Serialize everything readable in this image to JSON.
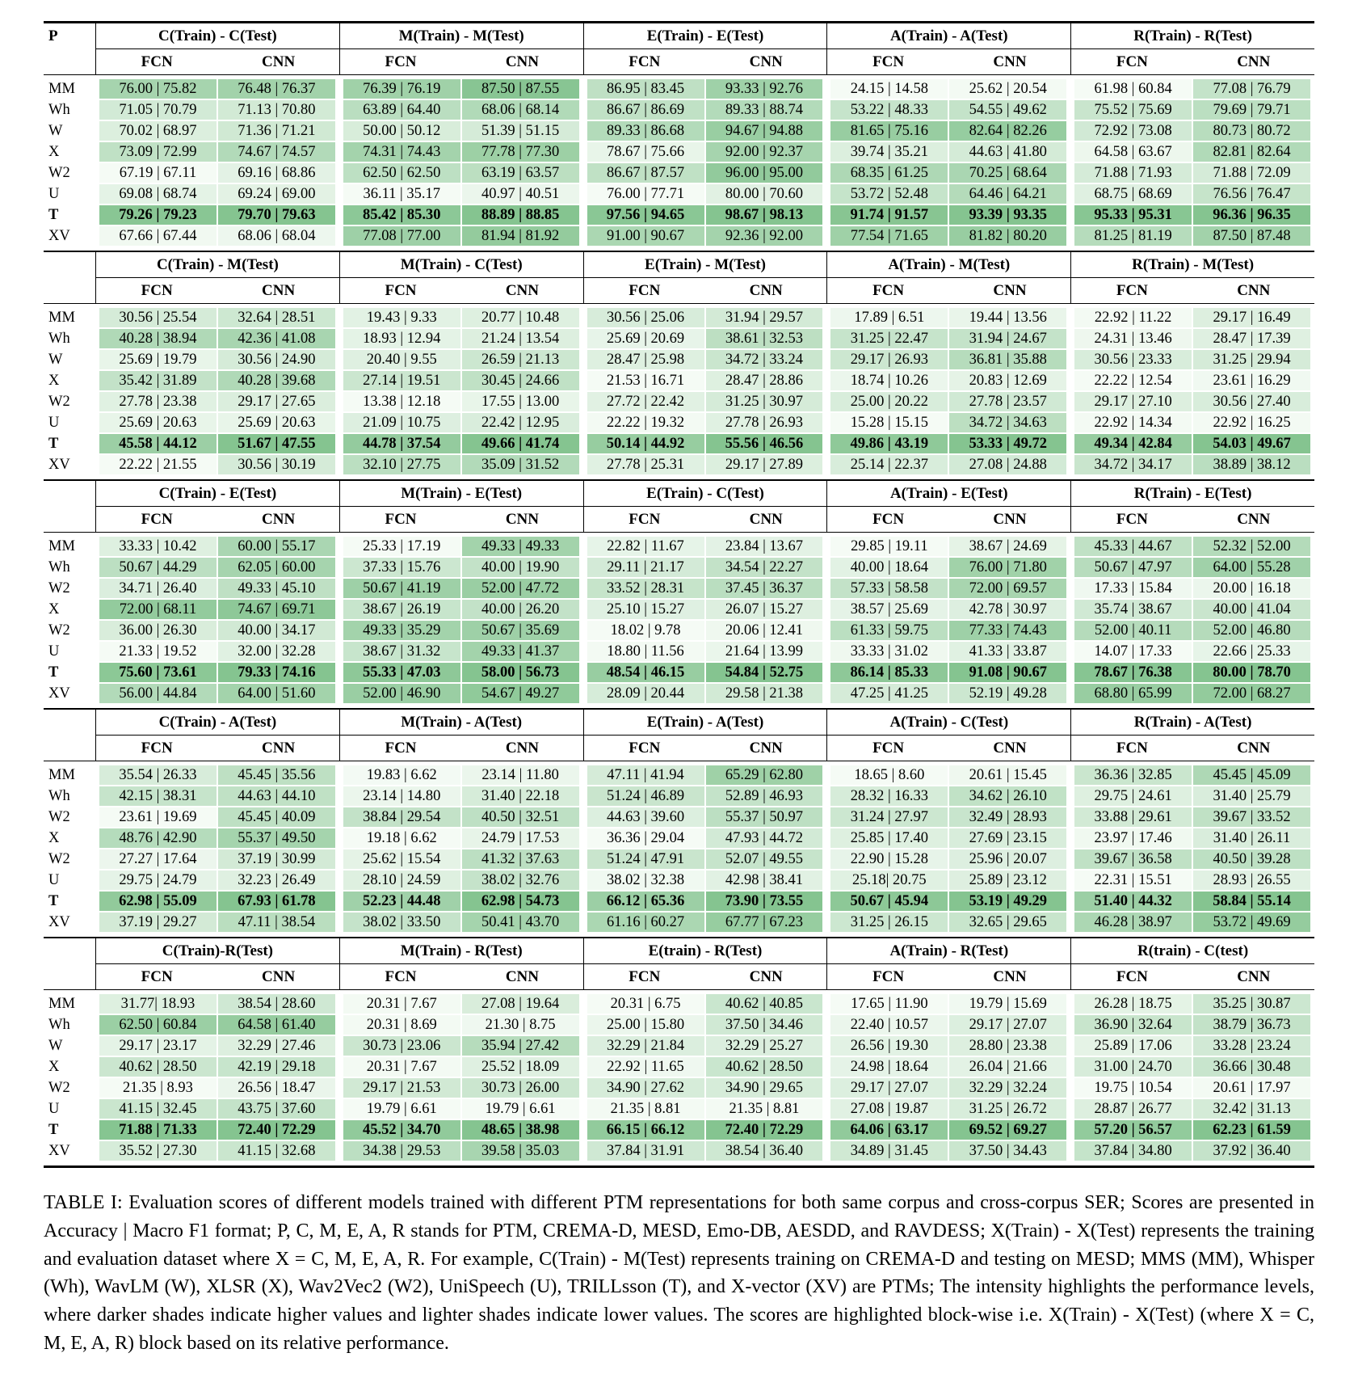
{
  "page": {
    "caption_label": "TABLE I:",
    "caption_text": "Evaluation scores of different models trained with different PTM representations for both same corpus and cross-corpus SER; Scores are presented in Accuracy | Macro F1 format; P, C, M, E, A, R stands for PTM, CREMA-D, MESD, Emo-DB, AESDD, and RAVDESS; X(Train) - X(Test) represents the training and evaluation dataset where X = C, M, E, A, R. For example, C(Train) - M(Test) represents training on CREMA-D and testing on MESD; MMS (MM), Whisper (Wh), WavLM (W), XLSR (X), Wav2Vec2 (W2), UniSpeech (U), TRILLsson (T), and X-vector (XV) are PTMs; The intensity highlights the performance levels, where darker shades indicate higher values and lighter shades indicate lower values. The scores are highlighted block-wise i.e. X(Train) - X(Test) (where X = C, M, E, A, R) block based on its relative performance."
  },
  "table": {
    "p_header": "P",
    "subheaders": [
      "FCN",
      "CNN"
    ],
    "colors": {
      "shade_light": "#f5fbf5",
      "shade_dark": "#85c490"
    },
    "sections": [
      {
        "groups": [
          "C(Train) - C(Test)",
          "M(Train) - M(Test)",
          "E(Train) - E(Test)",
          "A(Train) - A(Test)",
          "R(Train) - R(Test)"
        ],
        "rows": [
          {
            "label": "MM",
            "bold": false,
            "cells": [
              "76.00 | 75.82",
              "76.48 | 76.37",
              "76.39 | 76.19",
              "87.50 | 87.55",
              "86.95 | 83.45",
              "93.33 | 92.76",
              "24.15 | 14.58",
              "25.62 | 20.54",
              "61.98 | 60.84",
              "77.08 | 76.79"
            ]
          },
          {
            "label": "Wh",
            "bold": false,
            "cells": [
              "71.05 | 70.79",
              "71.13 | 70.80",
              "63.89 | 64.40",
              "68.06 | 68.14",
              "86.67 | 86.69",
              "89.33 | 88.74",
              "53.22 | 48.33",
              "54.55 | 49.62",
              "75.52 | 75.69",
              "79.69 | 79.71"
            ]
          },
          {
            "label": "W",
            "bold": false,
            "cells": [
              "70.02 | 68.97",
              "71.36 | 71.21",
              "50.00 | 50.12",
              "51.39 | 51.15",
              "89.33 | 86.68",
              "94.67 | 94.88",
              "81.65 | 75.16",
              "82.64 | 82.26",
              "72.92 | 73.08",
              "80.73 | 80.72"
            ]
          },
          {
            "label": "X",
            "bold": false,
            "cells": [
              "73.09 | 72.99",
              "74.67 | 74.57",
              "74.31 | 74.43",
              "77.78 | 77.30",
              "78.67 | 75.66",
              "92.00 | 92.37",
              "39.74 | 35.21",
              "44.63 | 41.80",
              "64.58 | 63.67",
              "82.81 | 82.64"
            ]
          },
          {
            "label": "W2",
            "bold": false,
            "cells": [
              "67.19 | 67.11",
              "69.16 | 68.86",
              "62.50 | 62.50",
              "63.19 | 63.57",
              "86.67 | 87.57",
              "96.00 | 95.00",
              "68.35 | 61.25",
              "70.25 | 68.64",
              "71.88 | 71.93",
              "71.88 | 72.09"
            ]
          },
          {
            "label": "U",
            "bold": false,
            "cells": [
              "69.08 | 68.74",
              "69.24 | 69.00",
              "36.11 | 35.17",
              "40.97 | 40.51",
              "76.00 | 77.71",
              "80.00 | 70.60",
              "53.72 | 52.48",
              "64.46 | 64.21",
              "68.75 | 68.69",
              "76.56 | 76.47"
            ]
          },
          {
            "label": "T",
            "bold": true,
            "cells": [
              "79.26 | 79.23",
              "79.70 | 79.63",
              "85.42 | 85.30",
              "88.89 | 88.85",
              "97.56 | 94.65",
              "98.67 | 98.13",
              "91.74 | 91.57",
              "93.39 | 93.35",
              "95.33 | 95.31",
              "96.36 | 96.35"
            ]
          },
          {
            "label": "XV",
            "bold": false,
            "cells": [
              "67.66 | 67.44",
              "68.06 | 68.04",
              "77.08 | 77.00",
              "81.94 | 81.92",
              "91.00 | 90.67",
              "92.36 | 92.00",
              "77.54 | 71.65",
              "81.82 | 80.20",
              "81.25 | 81.19",
              "87.50 | 87.48"
            ]
          }
        ]
      },
      {
        "groups": [
          "C(Train) - M(Test)",
          "M(Train) - C(Test)",
          "E(Train) - M(Test)",
          "A(Train) - M(Test)",
          "R(Train) - M(Test)"
        ],
        "rows": [
          {
            "label": "MM",
            "bold": false,
            "cells": [
              "30.56 | 25.54",
              "32.64 | 28.51",
              "19.43 | 9.33",
              "20.77 | 10.48",
              "30.56 | 25.06",
              "31.94 | 29.57",
              "17.89 | 6.51",
              "19.44 | 13.56",
              "22.92 | 11.22",
              "29.17 | 16.49"
            ]
          },
          {
            "label": "Wh",
            "bold": false,
            "cells": [
              "40.28 | 38.94",
              "42.36 | 41.08",
              "18.93 | 12.94",
              "21.24 | 13.54",
              "25.69 | 20.69",
              "38.61 | 32.53",
              "31.25 | 22.47",
              "31.94 | 24.67",
              "24.31 | 13.46",
              "28.47 | 17.39"
            ]
          },
          {
            "label": "W",
            "bold": false,
            "cells": [
              "25.69 | 19.79",
              "30.56 | 24.90",
              "20.40 | 9.55",
              "26.59 | 21.13",
              "28.47 | 25.98",
              "34.72 | 33.24",
              "29.17 | 26.93",
              "36.81 | 35.88",
              "30.56 | 23.33",
              "31.25 | 29.94"
            ]
          },
          {
            "label": "X",
            "bold": false,
            "cells": [
              "35.42 | 31.89",
              "40.28 | 39.68",
              "27.14 | 19.51",
              "30.45 | 24.66",
              "21.53 | 16.71",
              "28.47 | 28.86",
              "18.74 | 10.26",
              "20.83 | 12.69",
              "22.22 | 12.54",
              "23.61 | 16.29"
            ]
          },
          {
            "label": "W2",
            "bold": false,
            "cells": [
              "27.78 | 23.38",
              "29.17 | 27.65",
              "13.38 | 12.18",
              "17.55 | 13.00",
              "27.72 | 22.42",
              "31.25 | 30.97",
              "25.00 | 20.22",
              "27.78 | 23.57",
              "29.17 | 27.10",
              "30.56 | 27.40"
            ]
          },
          {
            "label": "U",
            "bold": false,
            "cells": [
              "25.69 | 20.63",
              "25.69 | 20.63",
              "21.09 | 10.75",
              "22.42 | 12.95",
              "22.22 | 19.32",
              "27.78 | 26.93",
              "15.28 | 15.15",
              "34.72 | 34.63",
              "22.92 | 14.34",
              "22.92 | 16.25"
            ]
          },
          {
            "label": "T",
            "bold": true,
            "cells": [
              "45.58 | 44.12",
              "51.67 | 47.55",
              "44.78 | 37.54",
              "49.66 | 41.74",
              "50.14 | 44.92",
              "55.56 | 46.56",
              "49.86 | 43.19",
              "53.33 | 49.72",
              "49.34 | 42.84",
              "54.03 | 49.67"
            ]
          },
          {
            "label": "XV",
            "bold": false,
            "cells": [
              "22.22 | 21.55",
              "30.56 | 30.19",
              "32.10 | 27.75",
              "35.09 | 31.52",
              "27.78 | 25.31",
              "29.17 | 27.89",
              "25.14 | 22.37",
              "27.08 | 24.88",
              "34.72 | 34.17",
              "38.89 | 38.12"
            ]
          }
        ]
      },
      {
        "groups": [
          "C(Train) - E(Test)",
          "M(Train) - E(Test)",
          "E(Train) - C(Test)",
          "A(Train) - E(Test)",
          "R(Train) - E(Test)"
        ],
        "rows": [
          {
            "label": "MM",
            "bold": false,
            "cells": [
              "33.33 | 10.42",
              "60.00 | 55.17",
              "25.33 | 17.19",
              "49.33 | 49.33",
              "22.82 | 11.67",
              "23.84 | 13.67",
              "29.85 | 19.11",
              "38.67 | 24.69",
              "45.33 | 44.67",
              "52.32 | 52.00"
            ]
          },
          {
            "label": "Wh",
            "bold": false,
            "cells": [
              "50.67 | 44.29",
              "62.05 | 60.00",
              "37.33 | 15.76",
              "40.00 | 19.90",
              "29.11 | 21.17",
              "34.54 | 22.27",
              "40.00 | 18.64",
              "76.00 | 71.80",
              "50.67 | 47.97",
              "64.00 | 55.28"
            ]
          },
          {
            "label": "W2",
            "bold": false,
            "cells": [
              "34.71 | 26.40",
              "49.33 | 45.10",
              "50.67 | 41.19",
              "52.00 | 47.72",
              "33.52 | 28.31",
              "37.45 | 36.37",
              "57.33 | 58.58",
              "72.00 | 69.57",
              "17.33 | 15.84",
              "20.00 | 16.18"
            ]
          },
          {
            "label": "X",
            "bold": false,
            "cells": [
              "72.00 | 68.11",
              "74.67 | 69.71",
              "38.67 | 26.19",
              "40.00 | 26.20",
              "25.10 | 15.27",
              "26.07 | 15.27",
              "38.57 | 25.69",
              "42.78 | 30.97",
              "35.74 | 38.67",
              "40.00 | 41.04"
            ]
          },
          {
            "label": "W2",
            "bold": false,
            "cells": [
              "36.00 | 26.30",
              "40.00 | 34.17",
              "49.33 | 35.29",
              "50.67 | 35.69",
              "18.02 | 9.78",
              "20.06 | 12.41",
              "61.33 | 59.75",
              "77.33 | 74.43",
              "52.00 | 40.11",
              "52.00 | 46.80"
            ]
          },
          {
            "label": "U",
            "bold": false,
            "cells": [
              "21.33 | 19.52",
              "32.00 | 32.28",
              "38.67 | 31.32",
              "49.33 | 41.37",
              "18.80 | 11.56",
              "21.64 | 13.99",
              "33.33 | 31.02",
              "41.33 | 33.87",
              "14.07 | 17.33",
              "22.66 | 25.33"
            ]
          },
          {
            "label": "T",
            "bold": true,
            "cells": [
              "75.60 | 73.61",
              "79.33 | 74.16",
              "55.33 | 47.03",
              "58.00 | 56.73",
              "48.54 | 46.15",
              "54.84 | 52.75",
              "86.14 | 85.33",
              "91.08 | 90.67",
              "78.67 | 76.38",
              "80.00 | 78.70"
            ]
          },
          {
            "label": "XV",
            "bold": false,
            "cells": [
              "56.00 | 44.84",
              "64.00 | 51.60",
              "52.00 | 46.90",
              "54.67 | 49.27",
              "28.09 | 20.44",
              "29.58 | 21.38",
              "47.25 | 41.25",
              "52.19 | 49.28",
              "68.80 | 65.99",
              "72.00 | 68.27"
            ]
          }
        ]
      },
      {
        "groups": [
          "C(Train) - A(Test)",
          "M(Train) - A(Test)",
          "E(Train) - A(Test)",
          "A(Train) - C(Test)",
          "R(Train) - A(Test)"
        ],
        "rows": [
          {
            "label": "MM",
            "bold": false,
            "cells": [
              "35.54 | 26.33",
              "45.45 | 35.56",
              "19.83 | 6.62",
              "23.14 | 11.80",
              "47.11 | 41.94",
              "65.29 | 62.80",
              "18.65 | 8.60",
              "20.61 | 15.45",
              "36.36 | 32.85",
              "45.45 | 45.09"
            ]
          },
          {
            "label": "Wh",
            "bold": false,
            "cells": [
              "42.15 | 38.31",
              "44.63 | 44.10",
              "23.14 | 14.80",
              "31.40 | 22.18",
              "51.24 | 46.89",
              "52.89 | 46.93",
              "28.32 | 16.33",
              "34.62 | 26.10",
              "29.75 | 24.61",
              "31.40 | 25.79"
            ]
          },
          {
            "label": "W2",
            "bold": false,
            "cells": [
              "23.61 | 19.69",
              "45.45 | 40.09",
              "38.84 | 29.54",
              "40.50 | 32.51",
              "44.63 | 39.60",
              "55.37 | 50.97",
              "31.24 | 27.97",
              "32.49 | 28.93",
              "33.88 | 29.61",
              "39.67 | 33.52"
            ]
          },
          {
            "label": "X",
            "bold": false,
            "cells": [
              "48.76 | 42.90",
              "55.37 | 49.50",
              "19.18 | 6.62",
              "24.79 | 17.53",
              "36.36 | 29.04",
              "47.93 | 44.72",
              "25.85 | 17.40",
              "27.69 | 23.15",
              "23.97 | 17.46",
              "31.40 | 26.11"
            ]
          },
          {
            "label": "W2",
            "bold": false,
            "cells": [
              "27.27 | 17.64",
              "37.19 | 30.99",
              "25.62 | 15.54",
              "41.32 | 37.63",
              "51.24 | 47.91",
              "52.07 | 49.55",
              "22.90 | 15.28",
              "25.96 | 20.07",
              "39.67 | 36.58",
              "40.50 | 39.28"
            ]
          },
          {
            "label": "U",
            "bold": false,
            "cells": [
              "29.75 | 24.79",
              "32.23 | 26.49",
              "28.10 | 24.59",
              "38.02 | 32.76",
              "38.02 | 32.38",
              "42.98 | 38.41",
              "25.18| 20.75",
              "25.89 | 23.12",
              "22.31 | 15.51",
              "28.93 | 26.55"
            ]
          },
          {
            "label": "T",
            "bold": true,
            "cells": [
              "62.98 | 55.09",
              "67.93 | 61.78",
              "52.23 | 44.48",
              "62.98 | 54.73",
              "66.12 | 65.36",
              "73.90 | 73.55",
              "50.67 | 45.94",
              "53.19 | 49.29",
              "51.40 | 44.32",
              "58.84 | 55.14"
            ]
          },
          {
            "label": "XV",
            "bold": false,
            "cells": [
              "37.19 | 29.27",
              "47.11 | 38.54",
              "38.02 | 33.50",
              "50.41 | 43.70",
              "61.16 | 60.27",
              "67.77 | 67.23",
              "31.25 | 26.15",
              "32.65 | 29.65",
              "46.28 | 38.97",
              "53.72 | 49.69"
            ]
          }
        ]
      },
      {
        "groups": [
          "C(Train)-R(Test)",
          "M(Train) - R(Test)",
          "E(train) - R(Test)",
          "A(Train) - R(Test)",
          "R(train) - C(test)"
        ],
        "rows": [
          {
            "label": "MM",
            "bold": false,
            "cells": [
              "31.77| 18.93",
              "38.54 | 28.60",
              "20.31 | 7.67",
              "27.08 | 19.64",
              "20.31 | 6.75",
              "40.62 | 40.85",
              "17.65 | 11.90",
              "19.79 | 15.69",
              "26.28 | 18.75",
              "35.25 | 30.87"
            ]
          },
          {
            "label": "Wh",
            "bold": false,
            "cells": [
              "62.50 | 60.84",
              "64.58 | 61.40",
              "20.31 | 8.69",
              "21.30 | 8.75",
              "25.00 | 15.80",
              "37.50 | 34.46",
              "22.40 | 10.57",
              "29.17 | 27.07",
              "36.90 | 32.64",
              "38.79 | 36.73"
            ]
          },
          {
            "label": "W",
            "bold": false,
            "cells": [
              "29.17 | 23.17",
              "32.29 | 27.46",
              "30.73 | 23.06",
              "35.94 | 27.42",
              "32.29 | 21.84",
              "32.29 | 25.27",
              "26.56 | 19.30",
              "28.80 | 23.38",
              "25.89 | 17.06",
              "33.28 | 23.24"
            ]
          },
          {
            "label": "X",
            "bold": false,
            "cells": [
              "40.62 | 28.50",
              "42.19 | 29.18",
              "20.31 | 7.67",
              "25.52 | 18.09",
              "22.92 | 11.65",
              "40.62 | 28.50",
              "24.98 | 18.64",
              "26.04 | 21.66",
              "31.00 | 24.70",
              "36.66 | 30.48"
            ]
          },
          {
            "label": "W2",
            "bold": false,
            "cells": [
              "21.35 | 8.93",
              "26.56 | 18.47",
              "29.17 | 21.53",
              "30.73 | 26.00",
              "34.90 | 27.62",
              "34.90 | 29.65",
              "29.17 | 27.07",
              "32.29 | 32.24",
              "19.75 | 10.54",
              "20.61 | 17.97"
            ]
          },
          {
            "label": "U",
            "bold": false,
            "cells": [
              "41.15 | 32.45",
              "43.75 | 37.60",
              "19.79 | 6.61",
              "19.79 | 6.61",
              "21.35 | 8.81",
              "21.35 | 8.81",
              "27.08 | 19.87",
              "31.25 | 26.72",
              "28.87 | 26.77",
              "32.42 | 31.13"
            ]
          },
          {
            "label": "T",
            "bold": true,
            "cells": [
              "71.88 | 71.33",
              "72.40 | 72.29",
              "45.52 | 34.70",
              "48.65 | 38.98",
              "66.15 | 66.12",
              "72.40 | 72.29",
              "64.06 | 63.17",
              "69.52 | 69.27",
              "57.20 | 56.57",
              "62.23 | 61.59"
            ]
          },
          {
            "label": "XV",
            "bold": false,
            "cells": [
              "35.52 | 27.30",
              "41.15 | 32.68",
              "34.38 | 29.53",
              "39.58 | 35.03",
              "37.84 | 31.91",
              "38.54 | 36.40",
              "34.89 | 31.45",
              "37.50 | 34.43",
              "37.84 | 34.80",
              "37.92 | 36.40"
            ]
          }
        ]
      }
    ]
  }
}
